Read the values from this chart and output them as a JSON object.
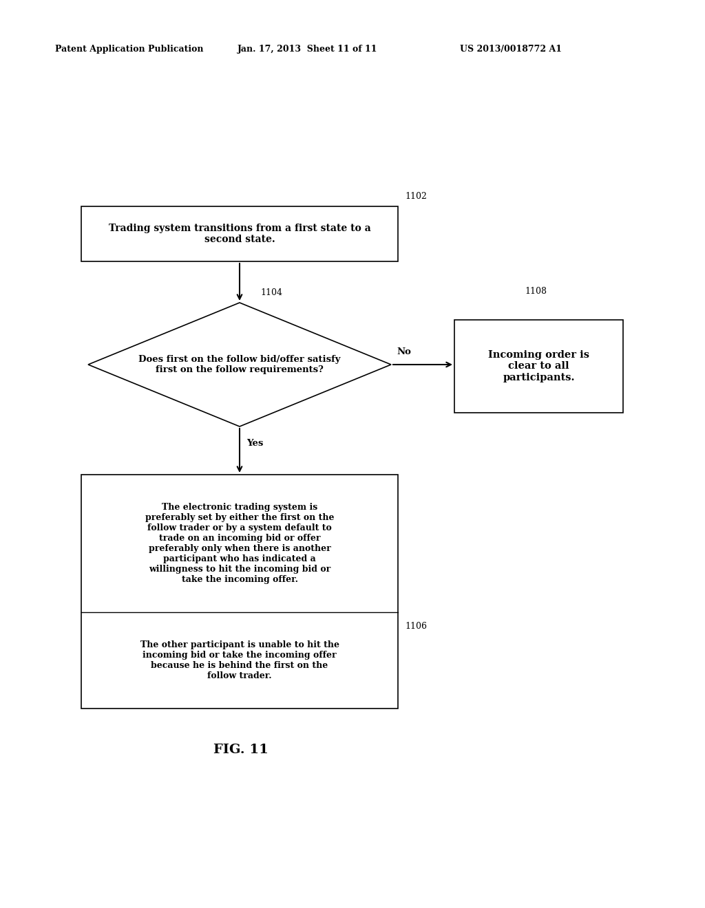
{
  "title_left": "Patent Application Publication",
  "title_mid": "Jan. 17, 2013  Sheet 11 of 11",
  "title_right": "US 2013/0018772 A1",
  "fig_label": "FIG. 11",
  "node1102_label": "Trading system transitions from a first state to a\nsecond state.",
  "node1102_id": "1102",
  "node1104_label": "Does first on the follow bid/offer satisfy\nfirst on the follow requirements?",
  "node1104_id": "1104",
  "node1106_label1": "The electronic trading system is\npreferably set by either the first on the\nfollow trader or by a system default to\ntrade on an incoming bid or offer\npreferably only when there is another\nparticipant who has indicated a\nwillingness to hit the incoming bid or\ntake the incoming offer.",
  "node1106_label2": "The other participant is unable to hit the\nincoming bid or take the incoming offer\nbecause he is behind the first on the\nfollow trader.",
  "node1106_id": "1106",
  "node1108_label": "Incoming order is\nclear to all\nparticipants.",
  "node1108_id": "1108",
  "bg_color": "#ffffff",
  "box_edge_color": "#000000",
  "text_color": "#000000",
  "arrow_color": "#000000"
}
